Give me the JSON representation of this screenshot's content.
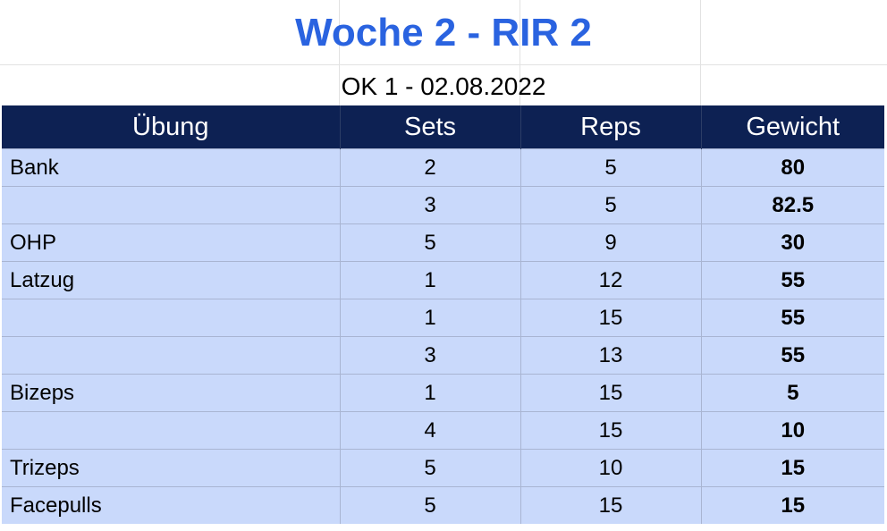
{
  "title": "Woche 2 - RIR 2",
  "subtitle": "OK 1 - 02.08.2022",
  "table": {
    "headers": [
      "Übung",
      "Sets",
      "Reps",
      "Gewicht"
    ],
    "rows": [
      [
        "Bank",
        "2",
        "5",
        "80"
      ],
      [
        "",
        "3",
        "5",
        "82.5"
      ],
      [
        "OHP",
        "5",
        "9",
        "30"
      ],
      [
        "Latzug",
        "1",
        "12",
        "55"
      ],
      [
        "",
        "1",
        "15",
        "55"
      ],
      [
        "",
        "3",
        "13",
        "55"
      ],
      [
        "Bizeps",
        "1",
        "15",
        "5"
      ],
      [
        "",
        "4",
        "15",
        "10"
      ],
      [
        "Trizeps",
        "5",
        "10",
        "15"
      ],
      [
        "Facepulls",
        "5",
        "15",
        "15"
      ]
    ]
  },
  "colors": {
    "title": "#2a63e0",
    "header_bg": "#0d2153",
    "row_bg": "#c9d9fb"
  }
}
